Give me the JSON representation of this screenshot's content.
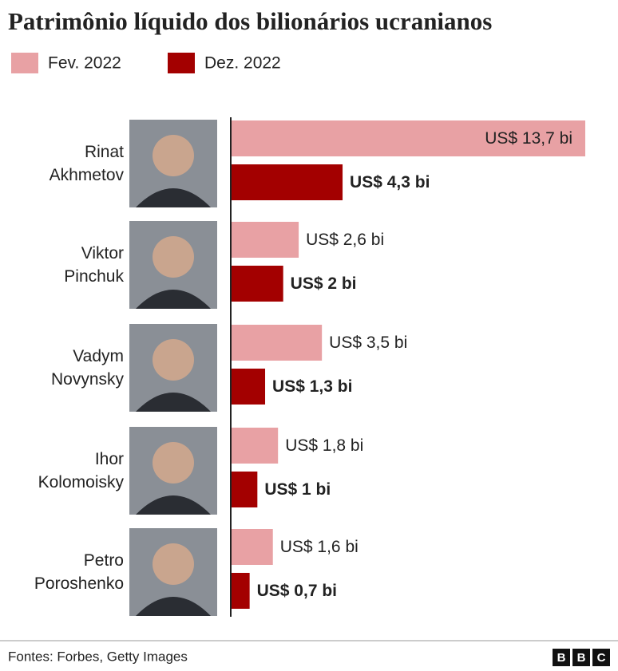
{
  "chart_data": {
    "type": "bar",
    "orientation": "horizontal",
    "title": "Patrimônio líquido dos bilionários ucranianos",
    "categories": [
      "Rinat Akhmetov",
      "Viktor Pinchuk",
      "Vadym Novynsky",
      "Ihor Kolomoisky",
      "Petro Poroshenko"
    ],
    "series": [
      {
        "name": "Fev. 2022",
        "color": "#e8a1a4",
        "values": [
          13.7,
          2.6,
          3.5,
          1.8,
          1.6
        ],
        "value_labels": [
          "US$ 13,7 bi",
          "US$ 2,6 bi",
          "US$ 3,5 bi",
          "US$ 1,8 bi",
          "US$ 1,6 bi"
        ]
      },
      {
        "name": "Dez. 2022",
        "color": "#a30000",
        "values": [
          4.3,
          2,
          1.3,
          1,
          0.7
        ],
        "value_labels": [
          "US$ 4,3 bi",
          "US$ 2 bi",
          "US$ 1,3 bi",
          "US$ 1 bi",
          "US$ 0,7 bi"
        ]
      }
    ],
    "source": "Fontes: Forbes, Getty Images",
    "logo": [
      "B",
      "B",
      "C"
    ]
  }
}
